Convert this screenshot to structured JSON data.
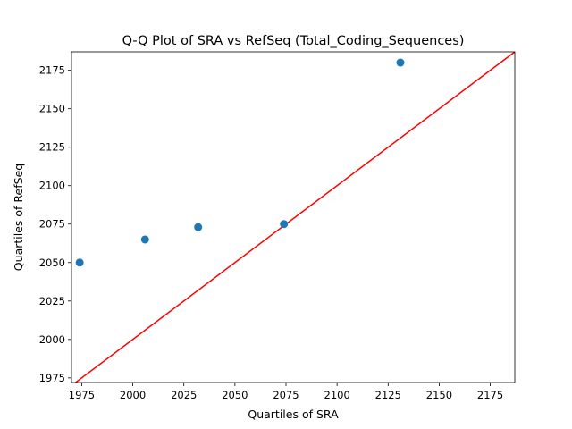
{
  "chart_data": {
    "type": "scatter",
    "title": "Q-Q Plot of SRA vs RefSeq (Total_Coding_Sequences)",
    "xlabel": "Quartiles of SRA",
    "ylabel": "Quartiles of RefSeq",
    "xlim": [
      1970,
      2187
    ],
    "ylim": [
      1972,
      2187
    ],
    "xticks": [
      1975,
      2000,
      2025,
      2050,
      2075,
      2100,
      2125,
      2150,
      2175
    ],
    "yticks": [
      1975,
      2000,
      2025,
      2050,
      2075,
      2100,
      2125,
      2150,
      2175
    ],
    "grid": false,
    "series": [
      {
        "points": [
          {
            "x": 1974,
            "y": 2050
          },
          {
            "x": 2006,
            "y": 2065
          },
          {
            "x": 2032,
            "y": 2073
          },
          {
            "x": 2074,
            "y": 2075
          },
          {
            "x": 2131,
            "y": 2180
          }
        ],
        "color": "#1f77b4"
      }
    ],
    "reference_line": {
      "from": [
        1970,
        1970
      ],
      "to": [
        2187,
        2187
      ],
      "color": "#ff0000"
    }
  }
}
